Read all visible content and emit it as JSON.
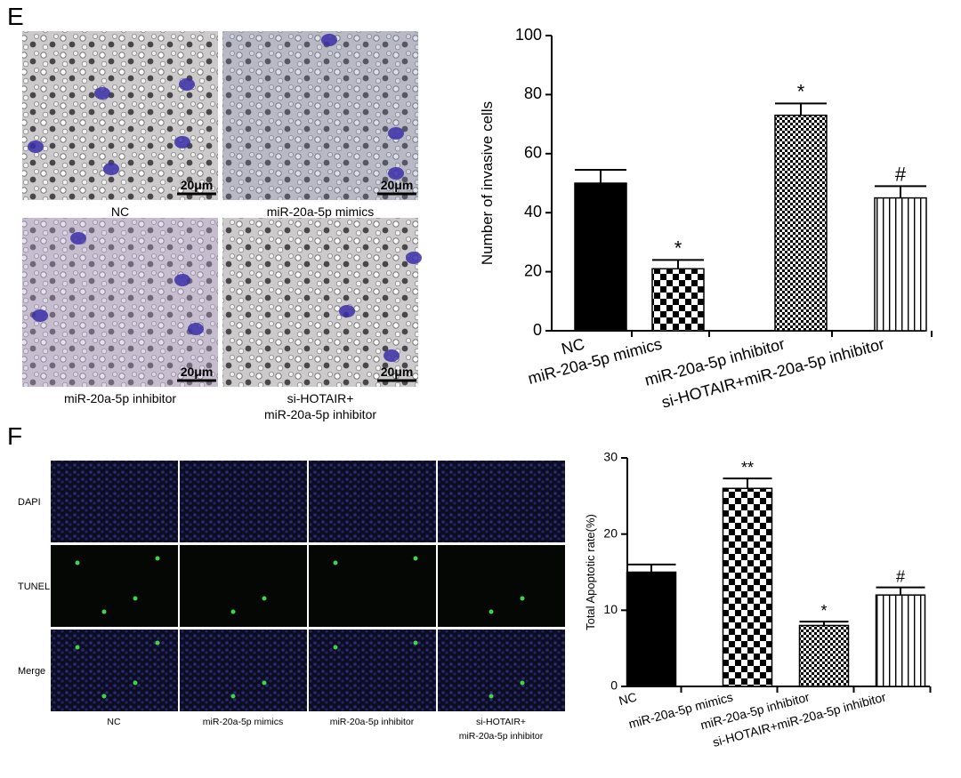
{
  "panels": [
    {
      "label": "E",
      "images": [
        {
          "caption": [
            "NC"
          ],
          "scale_bar": "20μm"
        },
        {
          "caption": [
            "miR-20a-5p mimics"
          ],
          "scale_bar": "20μm"
        },
        {
          "caption": [
            "miR-20a-5p inhibitor"
          ],
          "scale_bar": "20μm"
        },
        {
          "caption": [
            "si-HOTAIR+",
            "miR-20a-5p inhibitor"
          ],
          "scale_bar": "20μm"
        }
      ]
    },
    {
      "label": "F",
      "row_labels": [
        "DAPI",
        "TUNEL",
        "Merge"
      ],
      "column_labels": [
        [
          "NC"
        ],
        [
          "miR-20a-5p mimics"
        ],
        [
          "miR-20a-5p inhibitor"
        ],
        [
          "si-HOTAIR+",
          "miR-20a-5p inhibitor"
        ]
      ]
    }
  ],
  "chart_data": [
    {
      "type": "bar",
      "y_label": "Number of invasive cells",
      "categories": [
        "NC",
        "miR-20a-5p mimics",
        "miR-20a-5p inhibitor",
        "si-HOTAIR+miR-20a-5p inhibitor"
      ],
      "values": [
        50,
        21,
        73,
        45
      ],
      "errors": [
        4.5,
        3,
        4,
        4
      ],
      "annotations": [
        {
          "index": 1,
          "text": "*"
        },
        {
          "index": 2,
          "text": "*"
        },
        {
          "index": 3,
          "text": "#"
        }
      ],
      "patterns": [
        "solid",
        "checker",
        "fine-checker",
        "vertical-stripes"
      ],
      "ylim": [
        0,
        100
      ],
      "yticks": [
        0,
        20,
        40,
        60,
        80,
        100
      ]
    },
    {
      "type": "bar",
      "y_label": "Total Apoptotic rate(%)",
      "categories": [
        "NC",
        "miR-20a-5p mimics",
        "miR-20a-5p inhibitor",
        "si-HOTAIR+miR-20a-5p inhibitor"
      ],
      "values": [
        15,
        26,
        8,
        12
      ],
      "errors": [
        1,
        1.3,
        0.5,
        1
      ],
      "annotations": [
        {
          "index": 1,
          "text": "**"
        },
        {
          "index": 2,
          "text": "*"
        },
        {
          "index": 3,
          "text": "#"
        }
      ],
      "patterns": [
        "solid",
        "checker",
        "fine-checker",
        "vertical-stripes"
      ],
      "ylim": [
        0,
        30
      ],
      "yticks": [
        0,
        10,
        20,
        30
      ]
    }
  ]
}
